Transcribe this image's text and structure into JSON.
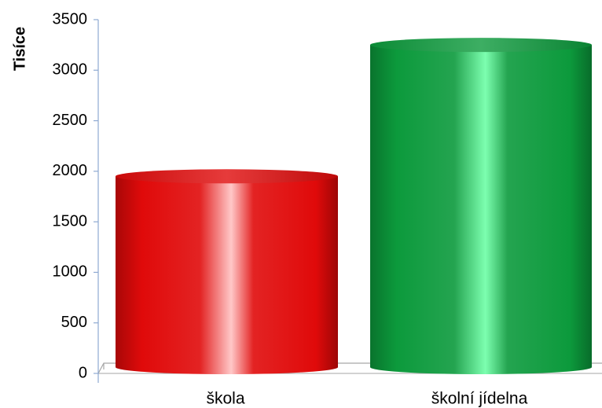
{
  "chart_data": {
    "type": "bar",
    "style": "3d-cylinder",
    "categories": [
      "škola",
      "školní jídelna"
    ],
    "values": [
      1950,
      3250
    ],
    "colors": [
      "#e00a0a",
      "#0c9a3c"
    ],
    "highlight_colors": [
      "#ffc8c8",
      "#7dffb0"
    ],
    "ylabel": "Tisíce",
    "ylim": [
      0,
      3500
    ],
    "yticks": [
      "0",
      "500",
      "1000",
      "1500",
      "2000",
      "2500",
      "3000",
      "3500"
    ],
    "grid": false,
    "legend": "none"
  }
}
